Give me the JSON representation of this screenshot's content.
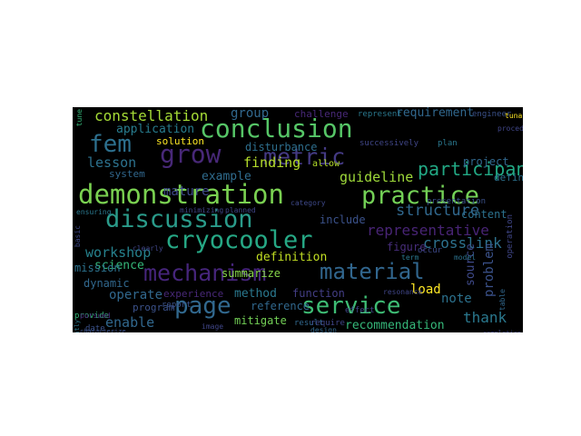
{
  "words": [
    {
      "text": "demonstration",
      "color": "#7ad151"
    },
    {
      "text": "discussion",
      "color": "#2a9b8a"
    },
    {
      "text": "cryocooler",
      "color": "#26a885"
    },
    {
      "text": "conclusion",
      "color": "#56c667"
    },
    {
      "text": "practice",
      "color": "#73d056"
    },
    {
      "text": "mechanism",
      "color": "#46257b"
    },
    {
      "text": "material",
      "color": "#31668e"
    },
    {
      "text": "page",
      "color": "#31688e"
    },
    {
      "text": "service",
      "color": "#3ebc74"
    },
    {
      "text": "fem",
      "color": "#2d708e"
    },
    {
      "text": "grow",
      "color": "#482878"
    },
    {
      "text": "metric",
      "color": "#443a83"
    },
    {
      "text": "participant",
      "color": "#22a884"
    },
    {
      "text": "constellation",
      "color": "#a5db36"
    },
    {
      "text": "application",
      "color": "#287c8e"
    },
    {
      "text": "group",
      "color": "#31688e"
    },
    {
      "text": "requirement",
      "color": "#31688e"
    },
    {
      "text": "disturbance",
      "color": "#2e6f8e"
    },
    {
      "text": "finding",
      "color": "#b5de2b"
    },
    {
      "text": "lesson",
      "color": "#2c728e"
    },
    {
      "text": "example",
      "color": "#2f6c8e"
    },
    {
      "text": "mature",
      "color": "#3e4989"
    },
    {
      "text": "solution",
      "color": "#fde725"
    },
    {
      "text": "guideline",
      "color": "#9fda3a"
    },
    {
      "text": "project",
      "color": "#31688e"
    },
    {
      "text": "content",
      "color": "#2c728e"
    },
    {
      "text": "define",
      "color": "#2c728e"
    },
    {
      "text": "structure",
      "color": "#31688e"
    },
    {
      "text": "include",
      "color": "#3b528b"
    },
    {
      "text": "representative",
      "color": "#482475"
    },
    {
      "text": "crosslink",
      "color": "#2d718e"
    },
    {
      "text": "workshop",
      "color": "#26828e"
    },
    {
      "text": "science",
      "color": "#35b779"
    },
    {
      "text": "mission",
      "color": "#2c728e"
    },
    {
      "text": "definition",
      "color": "#c2df23"
    },
    {
      "text": "figure",
      "color": "#472d7b"
    },
    {
      "text": "dynamic",
      "color": "#31688e"
    },
    {
      "text": "summarize",
      "color": "#86d549"
    },
    {
      "text": "operate",
      "color": "#31688e"
    },
    {
      "text": "experience",
      "color": "#482878"
    },
    {
      "text": "method",
      "color": "#2a788e"
    },
    {
      "text": "function",
      "color": "#433e85"
    },
    {
      "text": "load",
      "color": "#fde725"
    },
    {
      "text": "note",
      "color": "#2c728e"
    },
    {
      "text": "program",
      "color": "#3b528b"
    },
    {
      "text": "enable",
      "color": "#31688e"
    },
    {
      "text": "mitigate",
      "color": "#73d056"
    },
    {
      "text": "recommendation",
      "color": "#35b779"
    },
    {
      "text": "thank",
      "color": "#2a788e"
    },
    {
      "text": "reference",
      "color": "#31688e"
    },
    {
      "text": "problem",
      "color": "#3b528b"
    },
    {
      "text": "source",
      "color": "#3e4989"
    },
    {
      "text": "provide",
      "color": "#35b779"
    },
    {
      "text": "challenge",
      "color": "#482878"
    },
    {
      "text": "represent",
      "color": "#2a788e"
    },
    {
      "text": "engineer",
      "color": "#3b528b"
    },
    {
      "text": "system",
      "color": "#31688e"
    },
    {
      "text": "allow",
      "color": "#b5de2b"
    },
    {
      "text": "successively",
      "color": "#404688"
    },
    {
      "text": "presentation",
      "color": "#3b528b"
    },
    {
      "text": "report",
      "color": "#3b528b"
    },
    {
      "text": "date",
      "color": "#3b528b"
    },
    {
      "text": "result",
      "color": "#31688e"
    },
    {
      "text": "require",
      "color": "#404688"
    },
    {
      "text": "design",
      "color": "#31688e"
    },
    {
      "text": "effect",
      "color": "#404688"
    },
    {
      "text": "occur",
      "color": "#3e4989"
    },
    {
      "text": "operation",
      "color": "#404688"
    },
    {
      "text": "table",
      "color": "#31688e"
    },
    {
      "text": "plan",
      "color": "#2a788e"
    },
    {
      "text": "term",
      "color": "#2a788e"
    },
    {
      "text": "model",
      "color": "#2c728e"
    },
    {
      "text": "planned",
      "color": "#404688"
    },
    {
      "text": "category",
      "color": "#3e4989"
    },
    {
      "text": "resonance",
      "color": "#404688"
    },
    {
      "text": "tunable",
      "color": "#fde725"
    },
    {
      "text": "pursued",
      "color": "#482878"
    },
    {
      "text": "ensuring",
      "color": "#2a788e"
    },
    {
      "text": "basic",
      "color": "#3e4989"
    },
    {
      "text": "procedure",
      "color": "#404688"
    },
    {
      "text": "clearly",
      "color": "#404688"
    },
    {
      "text": "image",
      "color": "#404688"
    },
    {
      "text": "noting",
      "color": "#404688"
    },
    {
      "text": "minimizing",
      "color": "#404688"
    },
    {
      "text": "subsequently",
      "color": "#2a788e"
    },
    {
      "text": "characterize",
      "color": "#3b528b"
    },
    {
      "text": "tune",
      "color": "#35b779"
    },
    {
      "text": "completion",
      "color": "#404688"
    }
  ]
}
